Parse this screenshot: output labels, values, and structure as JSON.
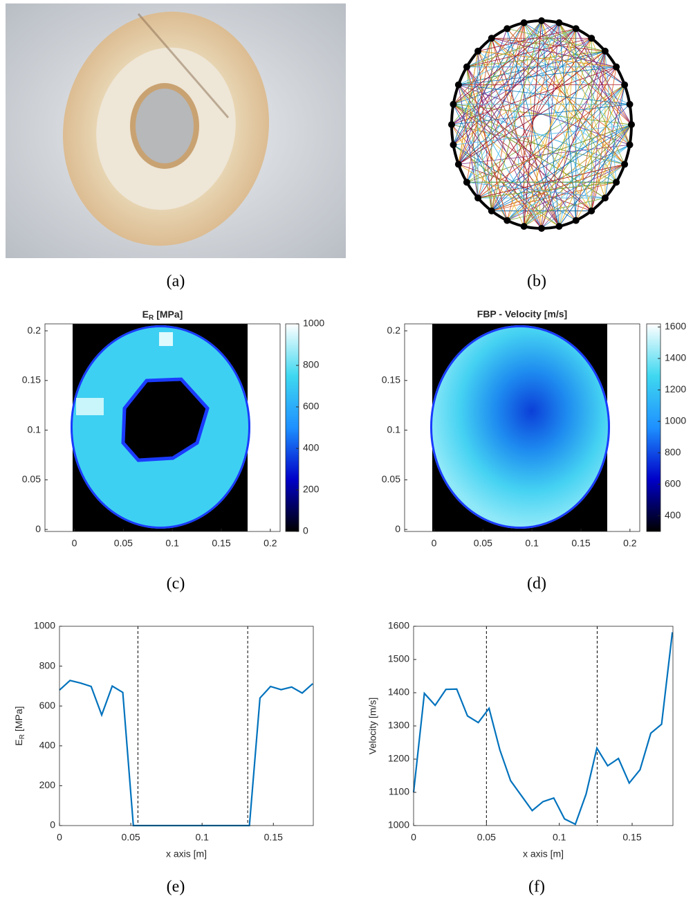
{
  "panels": [
    {
      "caption": "(a)"
    },
    {
      "caption": "(b)"
    }
  ],
  "chart_data": [
    {
      "type": "heatmap",
      "caption": "(c)",
      "title": [
        "E",
        "R",
        "[MPa]"
      ],
      "xlim": [
        -0.03,
        0.21
      ],
      "xticks": [
        0,
        0.05,
        0.1,
        0.15,
        0.2
      ],
      "ylim": [
        -0.002,
        0.207
      ],
      "yticks": [
        0,
        0.05,
        0.1,
        0.15,
        0.2
      ],
      "image_xlim": [
        0,
        0.178
      ],
      "clim": [
        0,
        1000
      ],
      "cticks": [
        0,
        200,
        400,
        600,
        800,
        1000
      ],
      "colormap": [
        "#000000",
        "#0000c8",
        "#1e90ff",
        "#3fd8f0",
        "#ffffff"
      ]
    },
    {
      "type": "heatmap",
      "caption": "(d)",
      "title": "FBP - Velocity [m/s]",
      "xlim": [
        -0.03,
        0.21
      ],
      "xticks": [
        0,
        0.05,
        0.1,
        0.15,
        0.2
      ],
      "ylim": [
        -0.002,
        0.207
      ],
      "yticks": [
        0,
        0.05,
        0.1,
        0.15,
        0.2
      ],
      "image_xlim": [
        0,
        0.178
      ],
      "clim": [
        300,
        1620
      ],
      "cticks": [
        400,
        600,
        800,
        1000,
        1200,
        1400,
        1600
      ],
      "colormap": [
        "#000000",
        "#0000c8",
        "#1e90ff",
        "#3fd8f0",
        "#ffffff"
      ]
    },
    {
      "type": "line",
      "caption": "(e)",
      "xlabel": "x axis [m]",
      "ylabel": [
        "E",
        "R",
        "[MPa]"
      ],
      "xlim": [
        0,
        0.178
      ],
      "xticks": [
        0,
        0.05,
        0.1,
        0.15
      ],
      "ylim": [
        0,
        1000
      ],
      "yticks": [
        0,
        200,
        400,
        600,
        800,
        1000
      ],
      "vlines": [
        0.055,
        0.132
      ],
      "color": "#0072bd",
      "x": [
        0,
        0.0074,
        0.0148,
        0.0222,
        0.0296,
        0.037,
        0.0444,
        0.0518,
        0.0592,
        0.0666,
        0.074,
        0.0814,
        0.0888,
        0.0962,
        0.1036,
        0.111,
        0.1184,
        0.1258,
        0.1332,
        0.1406,
        0.148,
        0.1554,
        0.1628,
        0.1702,
        0.1776
      ],
      "values": [
        680,
        728,
        715,
        698,
        555,
        700,
        668,
        0,
        0,
        0,
        0,
        0,
        0,
        0,
        0,
        0,
        0,
        0,
        0,
        640,
        698,
        682,
        695,
        665,
        712
      ]
    },
    {
      "type": "line",
      "caption": "(f)",
      "xlabel": "x axis [m]",
      "ylabel": "Velocity [m/s]",
      "xlim": [
        0,
        0.178
      ],
      "xticks": [
        0,
        0.05,
        0.1,
        0.15
      ],
      "ylim": [
        1000,
        1600
      ],
      "yticks": [
        1000,
        1100,
        1200,
        1300,
        1400,
        1500,
        1600
      ],
      "vlines": [
        0.05,
        0.126
      ],
      "color": "#0072bd",
      "x": [
        0,
        0.0074,
        0.0148,
        0.0222,
        0.0296,
        0.037,
        0.0444,
        0.0518,
        0.0592,
        0.0666,
        0.074,
        0.0814,
        0.0888,
        0.0962,
        0.1036,
        0.111,
        0.1184,
        0.1258,
        0.1332,
        0.1406,
        0.148,
        0.1554,
        0.1628,
        0.1702,
        0.1776
      ],
      "values": [
        1100,
        1398,
        1362,
        1410,
        1411,
        1330,
        1310,
        1353,
        1228,
        1135,
        1090,
        1045,
        1072,
        1083,
        1020,
        1004,
        1095,
        1233,
        1180,
        1202,
        1128,
        1168,
        1278,
        1305,
        1582
      ]
    }
  ]
}
